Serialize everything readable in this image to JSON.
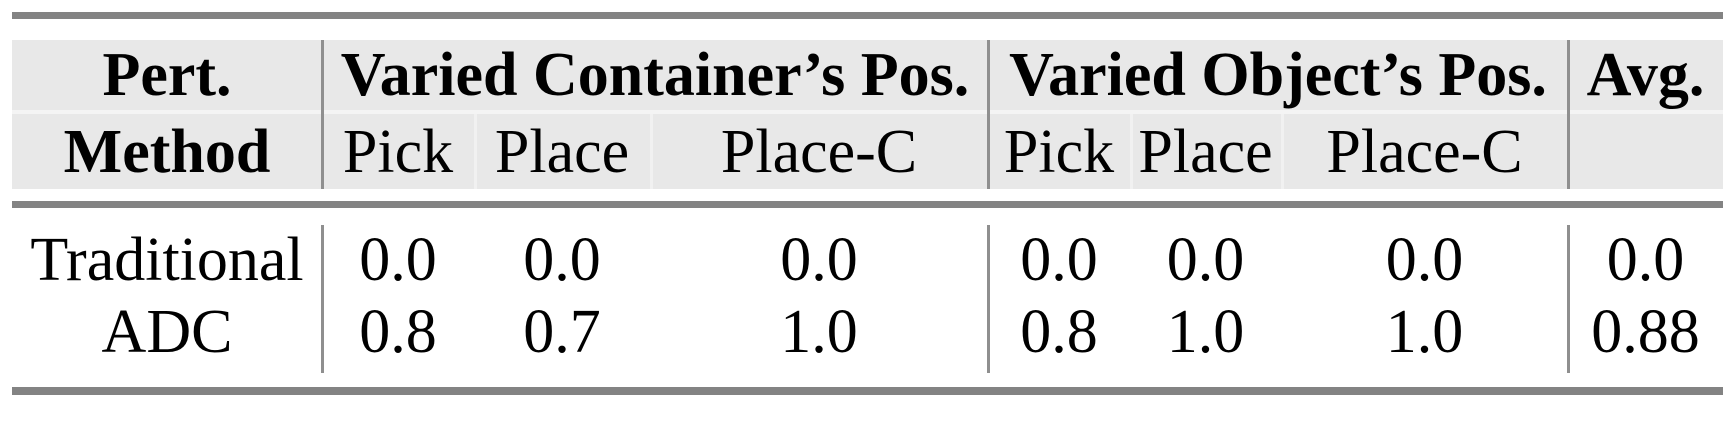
{
  "table": {
    "header": {
      "pert": "Pert.",
      "method": "Method",
      "group_container": "Varied Container’s Pos.",
      "group_object": "Varied Object’s Pos.",
      "avg": "Avg.",
      "sub_container": [
        "Pick",
        "Place",
        "Place-C"
      ],
      "sub_object": [
        "Pick",
        "Place",
        "Place-C"
      ]
    },
    "rows": [
      {
        "method": "Traditional",
        "container": [
          "0.0",
          "0.0",
          "0.0"
        ],
        "object": [
          "0.0",
          "0.0",
          "0.0"
        ],
        "avg": "0.0"
      },
      {
        "method": "ADC",
        "container": [
          "0.8",
          "0.7",
          "1.0"
        ],
        "object": [
          "0.8",
          "1.0",
          "1.0"
        ],
        "avg": "0.88"
      }
    ]
  },
  "colors": {
    "header_bg": "#e8e8e8",
    "rule": "#838383",
    "divider": "#8f8f8f",
    "header_row_separator": "#f4f4f4",
    "text": "#000000"
  }
}
